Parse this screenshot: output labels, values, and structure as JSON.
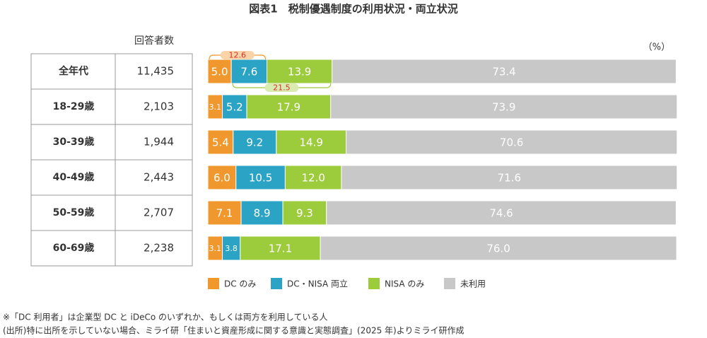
{
  "chart_data": {
    "type": "bar",
    "orientation": "horizontal",
    "stacked": true,
    "title": "図表1　税制優遇制度の利用状況・両立状況",
    "unit_label": "（%）",
    "categories": [
      "全年代",
      "18-29歳",
      "30-39歳",
      "40-49歳",
      "50-59歳",
      "60-69歳"
    ],
    "table_header": "回答者数",
    "respondents": [
      "11,435",
      "2,103",
      "1,944",
      "2,443",
      "2,707",
      "2,238"
    ],
    "xlim": [
      0,
      100
    ],
    "series": [
      {
        "name": "DC のみ",
        "color": "#f0982e",
        "values": [
          5.0,
          3.1,
          5.4,
          6.0,
          7.1,
          3.1
        ],
        "value_labels": [
          "5.0",
          "3.1",
          "5.4",
          "6.0",
          "7.1",
          "3.1"
        ]
      },
      {
        "name": "DC・NISA 両立",
        "color": "#2aa3c4",
        "values": [
          7.6,
          5.2,
          9.2,
          10.5,
          8.9,
          3.8
        ],
        "value_labels": [
          "7.6",
          "5.2",
          "9.2",
          "10.5",
          "8.9",
          "3.8"
        ]
      },
      {
        "name": "NISA のみ",
        "color": "#9ccb3b",
        "values": [
          13.9,
          17.9,
          14.9,
          12.0,
          9.3,
          17.1
        ],
        "value_labels": [
          "13.9",
          "17.9",
          "14.9",
          "12.0",
          "9.3",
          "17.1"
        ]
      },
      {
        "name": "未利用",
        "color": "#c8c8c8",
        "values": [
          73.4,
          73.9,
          70.6,
          71.6,
          74.6,
          76.0
        ],
        "value_labels": [
          "73.4",
          "73.9",
          "70.6",
          "71.6",
          "74.6",
          "76.0"
        ]
      }
    ],
    "annotations": [
      12.6,
      21.5
    ],
    "notes": [
      "※「DC 利用者」は企業型 DC と iDeCo のいずれか、もしくは両方を利用している人",
      "(出所)特に出所を示していない場合、ミライ研「住まいと資産形成に関する意識と実態調査」(2025 年)よりミライ研作成"
    ]
  }
}
